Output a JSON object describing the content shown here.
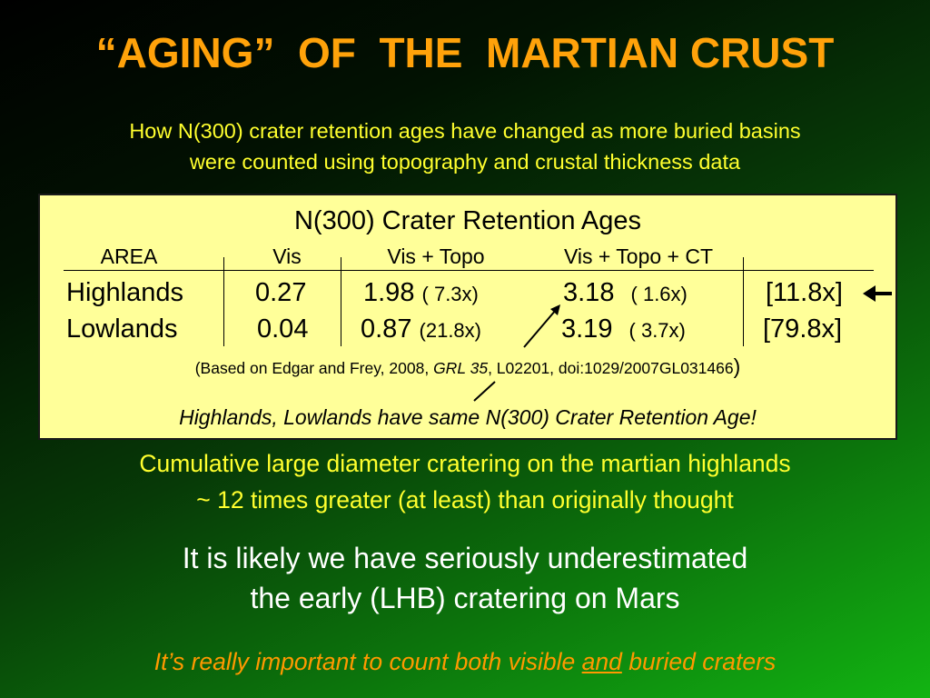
{
  "slide": {
    "title": "“AGING”  OF  THE  MARTIAN CRUST",
    "subtitle_lines": [
      "How N(300) crater retention ages have changed as more buried basins",
      "were counted using topography and crustal thickness data"
    ]
  },
  "table": {
    "title": "N(300) Crater Retention Ages",
    "headers": [
      "AREA",
      "Vis",
      "Vis + Topo",
      "Vis + Topo + CT"
    ],
    "rows": [
      {
        "area": "Highlands",
        "vis": "0.27",
        "topo": "1.98",
        "topo_factor": "(  7.3x)",
        "ct": "3.18",
        "ct_factor": "( 1.6x)",
        "total": "[11.8x]"
      },
      {
        "area": "Lowlands",
        "vis": "0.04",
        "topo": "0.87",
        "topo_factor": "(21.8x)",
        "ct": "3.19",
        "ct_factor": "( 3.7x)",
        "total": "[79.8x]"
      }
    ],
    "citation": {
      "open": "(",
      "before": "Based on Edgar and Frey, 2008, ",
      "journal": "GRL 35",
      "after": ", L02201, doi:1029/2007GL031466",
      "close": ")"
    },
    "conclusion": "Highlands, Lowlands have same N(300) Crater Retention Age!"
  },
  "cumulative_lines": [
    "Cumulative large diameter cratering on the martian highlands",
    "~ 12 times greater (at least) than originally thought"
  ],
  "likely_lines": [
    "It is likely we have seriously underestimated",
    "the early (LHB) cratering on Mars"
  ],
  "important": {
    "before": "It’s really important to count both visible ",
    "underlined": "and",
    "after": " buried craters"
  },
  "colors": {
    "title": "#ffa20a",
    "subtitle": "#ffff2e",
    "panel_background": "#ffff99",
    "body_text": "#ffffff",
    "important": "#ff9900"
  },
  "icons": [
    "left-arrow-icon",
    "pointer-line-icon"
  ]
}
